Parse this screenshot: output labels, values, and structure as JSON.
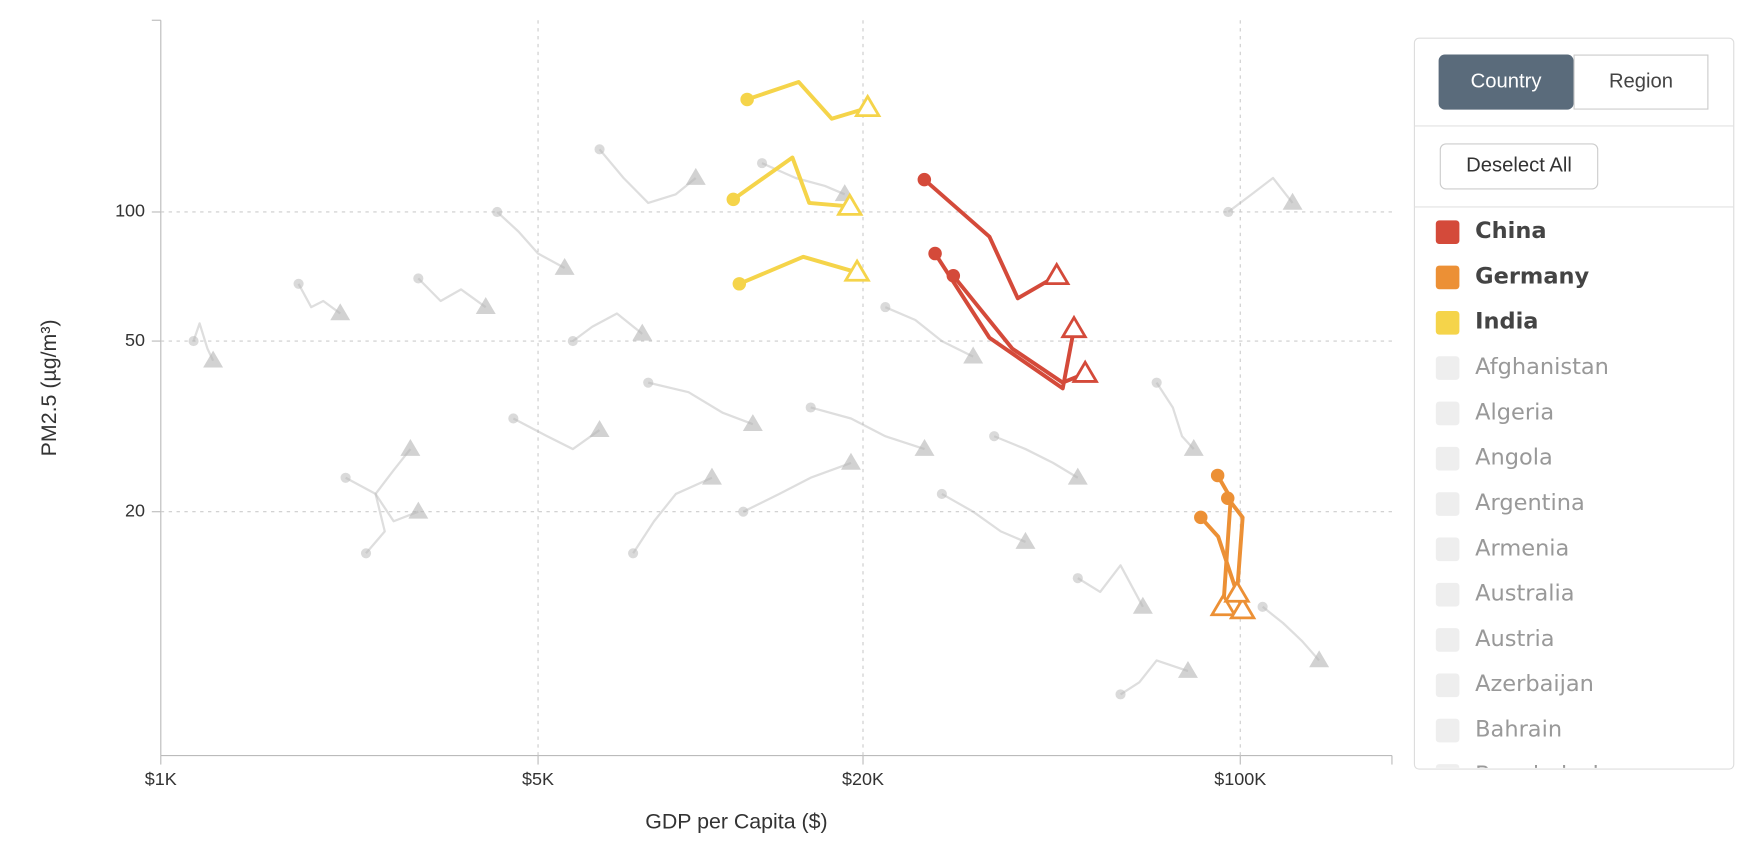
{
  "chart_data": {
    "type": "connected-scatter",
    "x_label": "GDP per Capita ($)",
    "y_label": "PM2.5 (µg/m³)",
    "xscale": "log",
    "yscale": "log",
    "xlim": [
      1000,
      191000
    ],
    "ylim": [
      5.4,
      280
    ],
    "xticks": [
      {
        "value": 1000,
        "label": "$1K"
      },
      {
        "value": 5000,
        "label": "$5K"
      },
      {
        "value": 20000,
        "label": "$20K"
      },
      {
        "value": 100000,
        "label": "$100K"
      }
    ],
    "yticks": [
      20,
      50,
      100
    ],
    "grid": true,
    "background_color": "#b5b5b5",
    "series": [
      {
        "name": "China",
        "color": "#d44a3a",
        "lines": [
          {
            "x": [
              25980,
              34300,
              38700,
              45700
            ],
            "y": [
              119,
              87.6,
              62.9,
              71
            ]
          },
          {
            "x": [
              27200,
              34300,
              46900,
              49200
            ],
            "y": [
              80,
              50.9,
              38.8,
              53.4
            ]
          },
          {
            "x": [
              29400,
              37800,
              46900,
              51600
            ],
            "y": [
              71,
              48,
              40,
              42
            ]
          }
        ]
      },
      {
        "name": "Germany",
        "color": "#ec9035",
        "lines": [
          {
            "x": [
              90800,
              96000,
              93000
            ],
            "y": [
              24.3,
              21.5,
              12
            ]
          },
          {
            "x": [
              84500,
              91000,
              101000
            ],
            "y": [
              19.4,
              17.5,
              11.8
            ]
          },
          {
            "x": [
              94800,
              101000,
              98600
            ],
            "y": [
              21.5,
              19.4,
              12.9
            ]
          }
        ]
      },
      {
        "name": "India",
        "color": "#f5d44a",
        "lines": [
          {
            "x": [
              12200,
              15200,
              17500,
              20400
            ],
            "y": [
              183,
              201,
              165,
              175
            ]
          },
          {
            "x": [
              11500,
              14800,
              15900,
              18900
            ],
            "y": [
              107,
              134,
              105,
              103
            ]
          },
          {
            "x": [
              11800,
              15500,
              19500
            ],
            "y": [
              68,
              78.6,
              72.3
            ]
          }
        ]
      }
    ],
    "background": [
      {
        "x": [
          1150,
          1180,
          1220,
          1250
        ],
        "y": [
          50,
          55,
          48,
          45
        ]
      },
      {
        "x": [
          1800,
          1900,
          2000,
          2150
        ],
        "y": [
          68,
          60,
          62,
          58
        ]
      },
      {
        "x": [
          2400,
          2600,
          2500,
          2700,
          2900
        ],
        "y": [
          16,
          18,
          22,
          25,
          28
        ]
      },
      {
        "x": [
          3000,
          3300,
          3600,
          4000
        ],
        "y": [
          70,
          62,
          66,
          60
        ]
      },
      {
        "x": [
          2200,
          2500,
          2700,
          3000
        ],
        "y": [
          24,
          22,
          19,
          20
        ]
      },
      {
        "x": [
          4200,
          4600,
          5000,
          5600
        ],
        "y": [
          100,
          90,
          80,
          74
        ]
      },
      {
        "x": [
          5800,
          6300,
          7000,
          7800
        ],
        "y": [
          50,
          54,
          58,
          52
        ]
      },
      {
        "x": [
          6500,
          7200,
          8000,
          9000,
          9800
        ],
        "y": [
          140,
          120,
          105,
          110,
          120
        ]
      },
      {
        "x": [
          7500,
          8200,
          9000,
          10500
        ],
        "y": [
          16,
          19,
          22,
          24
        ]
      },
      {
        "x": [
          8000,
          9500,
          11000,
          12500
        ],
        "y": [
          40,
          38,
          34,
          32
        ]
      },
      {
        "x": [
          12000,
          14000,
          16000,
          19000
        ],
        "y": [
          20,
          22,
          24,
          26
        ]
      },
      {
        "x": [
          16000,
          19000,
          22000,
          26000
        ],
        "y": [
          35,
          33,
          30,
          28
        ]
      },
      {
        "x": [
          22000,
          25000,
          28000,
          32000
        ],
        "y": [
          60,
          56,
          50,
          46
        ]
      },
      {
        "x": [
          28000,
          32000,
          36000,
          40000
        ],
        "y": [
          22,
          20,
          18,
          17
        ]
      },
      {
        "x": [
          35000,
          40000,
          45000,
          50000
        ],
        "y": [
          30,
          28,
          26,
          24
        ]
      },
      {
        "x": [
          50000,
          55000,
          60000,
          66000
        ],
        "y": [
          14,
          13,
          15,
          12
        ]
      },
      {
        "x": [
          60000,
          65000,
          70000,
          80000
        ],
        "y": [
          7.5,
          8,
          9,
          8.5
        ]
      },
      {
        "x": [
          95000,
          105000,
          115000,
          125000
        ],
        "y": [
          100,
          110,
          120,
          105
        ]
      },
      {
        "x": [
          110000,
          120000,
          130000,
          140000
        ],
        "y": [
          12,
          11,
          10,
          9
        ]
      },
      {
        "x": [
          4500,
          5200,
          5800,
          6500
        ],
        "y": [
          33,
          30,
          28,
          31
        ]
      },
      {
        "x": [
          13000,
          15000,
          17000,
          18500
        ],
        "y": [
          130,
          120,
          115,
          110
        ]
      },
      {
        "x": [
          70000,
          75000,
          78000,
          82000
        ],
        "y": [
          40,
          35,
          30,
          28
        ]
      }
    ]
  },
  "controls": {
    "tabs": [
      "Country",
      "Region"
    ],
    "active_tab": "Country",
    "deselect": "Deselect All",
    "other_countries": [
      "Afghanistan",
      "Algeria",
      "Angola",
      "Argentina",
      "Armenia",
      "Australia",
      "Austria",
      "Azerbaijan",
      "Bahrain",
      "Bangladesh"
    ]
  }
}
